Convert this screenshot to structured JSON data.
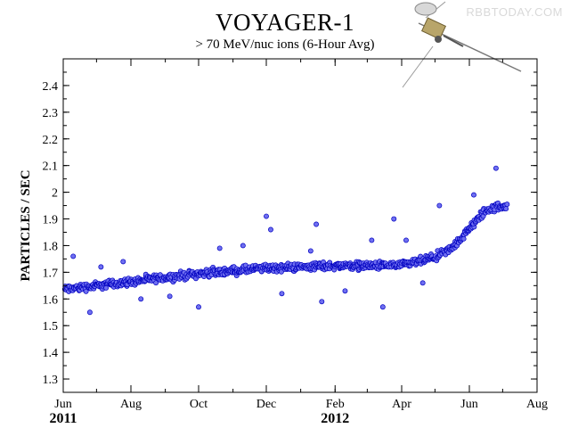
{
  "watermark": "RBBTODAY.COM",
  "colors": {
    "point_fill": "#6f6ff0",
    "point_stroke": "#0000c0",
    "axis": "#000000"
  },
  "chart_data": {
    "type": "scatter",
    "title": "VOYAGER-1",
    "subtitle": "> 70 MeV/nuc ions (6-Hour Avg)",
    "ylabel": "PARTICLES / SEC",
    "xlabel": "",
    "xlim": [
      "2011-06-01",
      "2012-08-01"
    ],
    "ylim": [
      1.25,
      2.5
    ],
    "yticks": [
      1.3,
      1.4,
      1.5,
      1.6,
      1.7,
      1.8,
      1.9,
      2.0,
      2.1,
      2.2,
      2.3,
      2.4
    ],
    "ytick_labels": [
      "1.3",
      "1.4",
      "1.5",
      "1.6",
      "1.7",
      "1.8",
      "1.9",
      "2",
      "2.1",
      "2.2",
      "2.3",
      "2.4"
    ],
    "xticks": [
      "2011-06-01",
      "2011-08-01",
      "2011-10-01",
      "2011-12-01",
      "2012-02-01",
      "2012-04-01",
      "2012-06-01",
      "2012-08-01"
    ],
    "xtick_labels": [
      "Jun",
      "Aug",
      "Oct",
      "Dec",
      "Feb",
      "Apr",
      "Jun",
      "Aug"
    ],
    "year_labels": [
      {
        "date": "2011-06-01",
        "label": "2011"
      },
      {
        "date": "2012-02-01",
        "label": "2012"
      }
    ],
    "grid": false,
    "trend": [
      [
        "2011-06-01",
        1.635
      ],
      [
        "2011-08-01",
        1.665
      ],
      [
        "2011-10-01",
        1.695
      ],
      [
        "2011-12-01",
        1.715
      ],
      [
        "2012-02-01",
        1.725
      ],
      [
        "2012-04-01",
        1.725
      ],
      [
        "2012-05-01",
        1.755
      ],
      [
        "2012-05-15",
        1.785
      ],
      [
        "2012-06-01",
        1.86
      ],
      [
        "2012-06-15",
        1.93
      ],
      [
        "2012-07-01",
        1.95
      ]
    ],
    "outliers": [
      [
        "2011-06-10",
        1.76
      ],
      [
        "2011-06-25",
        1.55
      ],
      [
        "2011-07-05",
        1.72
      ],
      [
        "2011-07-25",
        1.74
      ],
      [
        "2011-08-10",
        1.6
      ],
      [
        "2011-09-05",
        1.61
      ],
      [
        "2011-10-01",
        1.57
      ],
      [
        "2011-10-20",
        1.79
      ],
      [
        "2011-11-10",
        1.8
      ],
      [
        "2011-12-01",
        1.91
      ],
      [
        "2011-12-05",
        1.86
      ],
      [
        "2011-12-15",
        1.62
      ],
      [
        "2012-01-10",
        1.78
      ],
      [
        "2012-01-15",
        1.88
      ],
      [
        "2012-01-20",
        1.59
      ],
      [
        "2012-02-10",
        1.63
      ],
      [
        "2012-03-05",
        1.82
      ],
      [
        "2012-03-15",
        1.57
      ],
      [
        "2012-03-25",
        1.9
      ],
      [
        "2012-04-05",
        1.82
      ],
      [
        "2012-04-20",
        1.66
      ],
      [
        "2012-05-05",
        1.95
      ],
      [
        "2012-06-05",
        1.99
      ],
      [
        "2012-06-25",
        2.09
      ]
    ],
    "end_date": "2012-07-05"
  }
}
